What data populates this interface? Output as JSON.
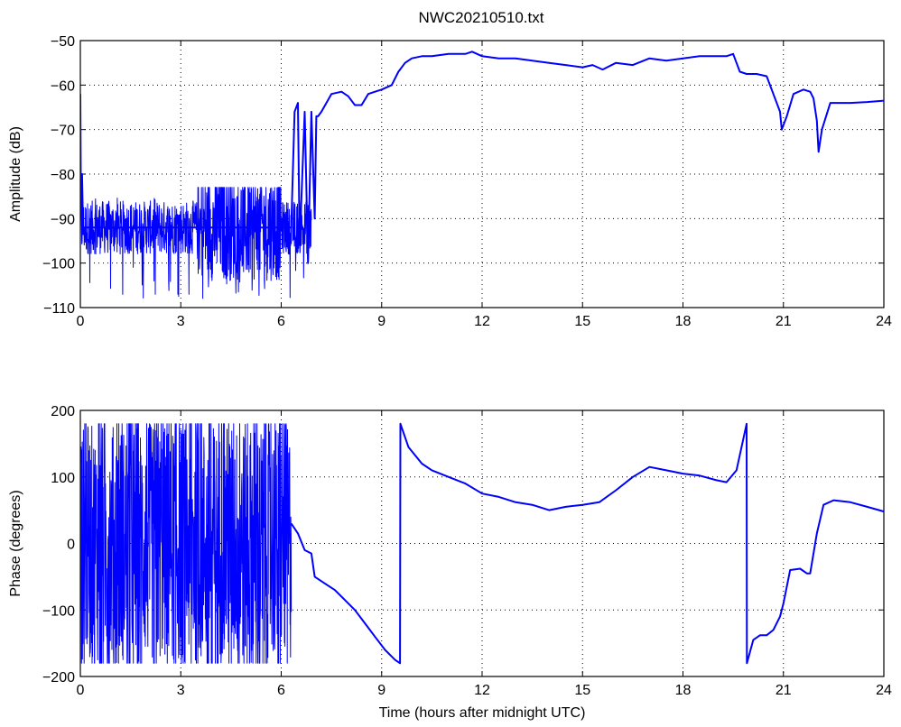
{
  "figure": {
    "title": "NWC20210510.txt"
  },
  "chart_data": [
    {
      "type": "line",
      "title": "NWC20210510.txt",
      "xlabel": "",
      "ylabel": "Amplitude (dB)",
      "xlim": [
        0,
        24
      ],
      "ylim": [
        -110,
        -50
      ],
      "xticks": [
        0,
        3,
        6,
        9,
        12,
        15,
        18,
        21,
        24
      ],
      "yticks": [
        -110,
        -100,
        -90,
        -80,
        -70,
        -60,
        -50
      ],
      "grid": true,
      "color": "#0000ff",
      "noisy_segments": [
        {
          "x_start": 0.0,
          "x_end": 6.9,
          "center": -92,
          "min": -108,
          "max": -83
        }
      ],
      "x": [
        0,
        0.02,
        0.05,
        0.08,
        6.3,
        6.4,
        6.5,
        6.55,
        6.7,
        6.8,
        6.9,
        7.0,
        7.05,
        7.1,
        7.2,
        7.5,
        7.8,
        8.0,
        8.2,
        8.4,
        8.6,
        8.8,
        9.0,
        9.3,
        9.5,
        9.7,
        9.9,
        10.2,
        10.5,
        11.0,
        11.5,
        11.7,
        12.0,
        12.5,
        13.0,
        13.5,
        14.0,
        14.5,
        15.0,
        15.3,
        15.6,
        16.0,
        16.5,
        17.0,
        17.5,
        18.0,
        18.5,
        19.0,
        19.3,
        19.5,
        19.6,
        19.7,
        19.9,
        20.2,
        20.5,
        20.7,
        20.9,
        20.95,
        21.1,
        21.3,
        21.6,
        21.8,
        21.9,
        22.0,
        22.05,
        22.15,
        22.4,
        23.0,
        23.5,
        24.0
      ],
      "y": [
        -62,
        -90,
        -80,
        -92,
        -92,
        -66,
        -64,
        -96,
        -66,
        -100,
        -66,
        -90,
        -67,
        -67,
        -66,
        -62,
        -61.5,
        -62.5,
        -64.5,
        -64.5,
        -62,
        -61.5,
        -61,
        -60,
        -57,
        -55,
        -54,
        -53.5,
        -53.5,
        -53,
        -53,
        -52.5,
        -53.5,
        -54,
        -54,
        -54.5,
        -55,
        -55.5,
        -56,
        -55.5,
        -56.5,
        -55,
        -55.5,
        -54,
        -54.5,
        -54,
        -53.5,
        -53.5,
        -53.5,
        -53,
        -55,
        -57,
        -57.5,
        -57.5,
        -58,
        -62,
        -66,
        -70,
        -67,
        -62,
        -61,
        -61.5,
        -63,
        -68,
        -75,
        -70,
        -64,
        -64,
        -63.8,
        -63.5
      ]
    },
    {
      "type": "line",
      "title": "",
      "xlabel": "Time (hours after midnight UTC)",
      "ylabel": "Phase (degrees)",
      "xlim": [
        0,
        24
      ],
      "ylim": [
        -200,
        200
      ],
      "xticks": [
        0,
        3,
        6,
        9,
        12,
        15,
        18,
        21,
        24
      ],
      "yticks": [
        -200,
        -100,
        0,
        100,
        200
      ],
      "grid": true,
      "color": "#0000ff",
      "noisy_segments": [
        {
          "x_start": 0.0,
          "x_end": 6.3,
          "center": 0,
          "min": -180,
          "max": 180,
          "wrapping": true
        }
      ],
      "x": [
        6.3,
        6.5,
        6.7,
        6.9,
        7.0,
        7.3,
        7.6,
        7.9,
        8.2,
        8.5,
        8.8,
        9.1,
        9.4,
        9.55,
        9.56,
        9.8,
        10.2,
        10.5,
        11.0,
        11.5,
        12.0,
        12.5,
        13.0,
        13.5,
        14.0,
        14.5,
        15.0,
        15.5,
        16.0,
        16.5,
        17.0,
        17.5,
        18.0,
        18.5,
        19.0,
        19.3,
        19.6,
        19.9,
        19.91,
        20.1,
        20.3,
        20.5,
        20.7,
        20.9,
        21.0,
        21.2,
        21.5,
        21.7,
        21.8,
        22.0,
        22.2,
        22.5,
        23.0,
        23.5,
        24.0
      ],
      "y": [
        30,
        15,
        -10,
        -15,
        -50,
        -60,
        -70,
        -85,
        -100,
        -120,
        -140,
        -160,
        -175,
        -180,
        180,
        145,
        120,
        110,
        100,
        90,
        75,
        70,
        62,
        58,
        50,
        55,
        58,
        62,
        80,
        100,
        115,
        110,
        105,
        102,
        95,
        92,
        110,
        180,
        -180,
        -145,
        -138,
        -138,
        -130,
        -110,
        -90,
        -40,
        -38,
        -45,
        -45,
        15,
        58,
        65,
        62,
        55,
        48
      ]
    }
  ]
}
